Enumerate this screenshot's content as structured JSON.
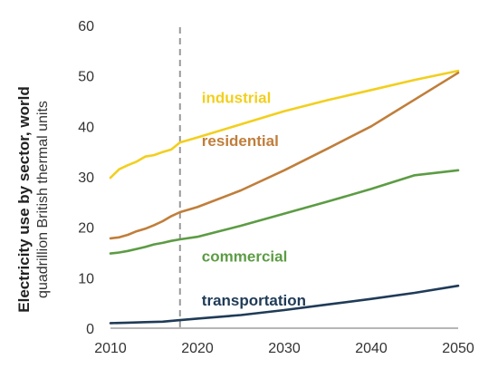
{
  "chart_data": {
    "type": "line",
    "ylabel": "Electricity use by sector, world",
    "ylabel_unit": "quadrillion British thermal units",
    "xlim": [
      2010,
      2050
    ],
    "ylim": [
      0,
      60
    ],
    "x_ticks": [
      2010,
      2020,
      2030,
      2040,
      2050
    ],
    "y_ticks": [
      0,
      10,
      20,
      30,
      40,
      50,
      60
    ],
    "grid": false,
    "vertical_marker_x": 2018,
    "series": [
      {
        "name": "industrial",
        "color": "#f2cf1e",
        "points": [
          [
            2010,
            29.8
          ],
          [
            2011,
            31.5
          ],
          [
            2012,
            32.3
          ],
          [
            2013,
            33.0
          ],
          [
            2014,
            34.0
          ],
          [
            2015,
            34.3
          ],
          [
            2016,
            34.9
          ],
          [
            2017,
            35.4
          ],
          [
            2018,
            36.8
          ],
          [
            2020,
            37.8
          ],
          [
            2025,
            40.4
          ],
          [
            2030,
            43.0
          ],
          [
            2035,
            45.2
          ],
          [
            2040,
            47.2
          ],
          [
            2045,
            49.2
          ],
          [
            2050,
            51.0
          ]
        ]
      },
      {
        "name": "residential",
        "color": "#c07e3a",
        "points": [
          [
            2010,
            17.8
          ],
          [
            2011,
            18.0
          ],
          [
            2012,
            18.5
          ],
          [
            2013,
            19.2
          ],
          [
            2014,
            19.7
          ],
          [
            2015,
            20.4
          ],
          [
            2016,
            21.2
          ],
          [
            2017,
            22.2
          ],
          [
            2018,
            23.0
          ],
          [
            2020,
            24.0
          ],
          [
            2025,
            27.3
          ],
          [
            2030,
            31.3
          ],
          [
            2035,
            35.6
          ],
          [
            2040,
            40.0
          ],
          [
            2045,
            45.3
          ],
          [
            2050,
            50.6
          ]
        ]
      },
      {
        "name": "commercial",
        "color": "#5c9c44",
        "points": [
          [
            2010,
            14.8
          ],
          [
            2011,
            15.0
          ],
          [
            2012,
            15.3
          ],
          [
            2013,
            15.7
          ],
          [
            2014,
            16.1
          ],
          [
            2015,
            16.6
          ],
          [
            2016,
            16.9
          ],
          [
            2017,
            17.3
          ],
          [
            2018,
            17.6
          ],
          [
            2020,
            18.1
          ],
          [
            2025,
            20.3
          ],
          [
            2030,
            22.7
          ],
          [
            2035,
            25.1
          ],
          [
            2040,
            27.6
          ],
          [
            2045,
            30.3
          ],
          [
            2050,
            31.3
          ]
        ]
      },
      {
        "name": "transportation",
        "color": "#1f3b57",
        "points": [
          [
            2010,
            1.0
          ],
          [
            2012,
            1.1
          ],
          [
            2014,
            1.2
          ],
          [
            2016,
            1.3
          ],
          [
            2018,
            1.6
          ],
          [
            2020,
            1.9
          ],
          [
            2025,
            2.6
          ],
          [
            2030,
            3.6
          ],
          [
            2035,
            4.7
          ],
          [
            2040,
            5.8
          ],
          [
            2045,
            7.0
          ],
          [
            2050,
            8.4
          ]
        ]
      }
    ],
    "labels": [
      {
        "text": "industrial",
        "x": 2020.5,
        "y": 44.6,
        "series": 0
      },
      {
        "text": "residential",
        "x": 2020.5,
        "y": 36.1,
        "series": 1
      },
      {
        "text": "commercial",
        "x": 2020.5,
        "y": 13.2,
        "series": 2
      },
      {
        "text": "transportation",
        "x": 2020.5,
        "y": 4.5,
        "series": 3
      }
    ]
  }
}
